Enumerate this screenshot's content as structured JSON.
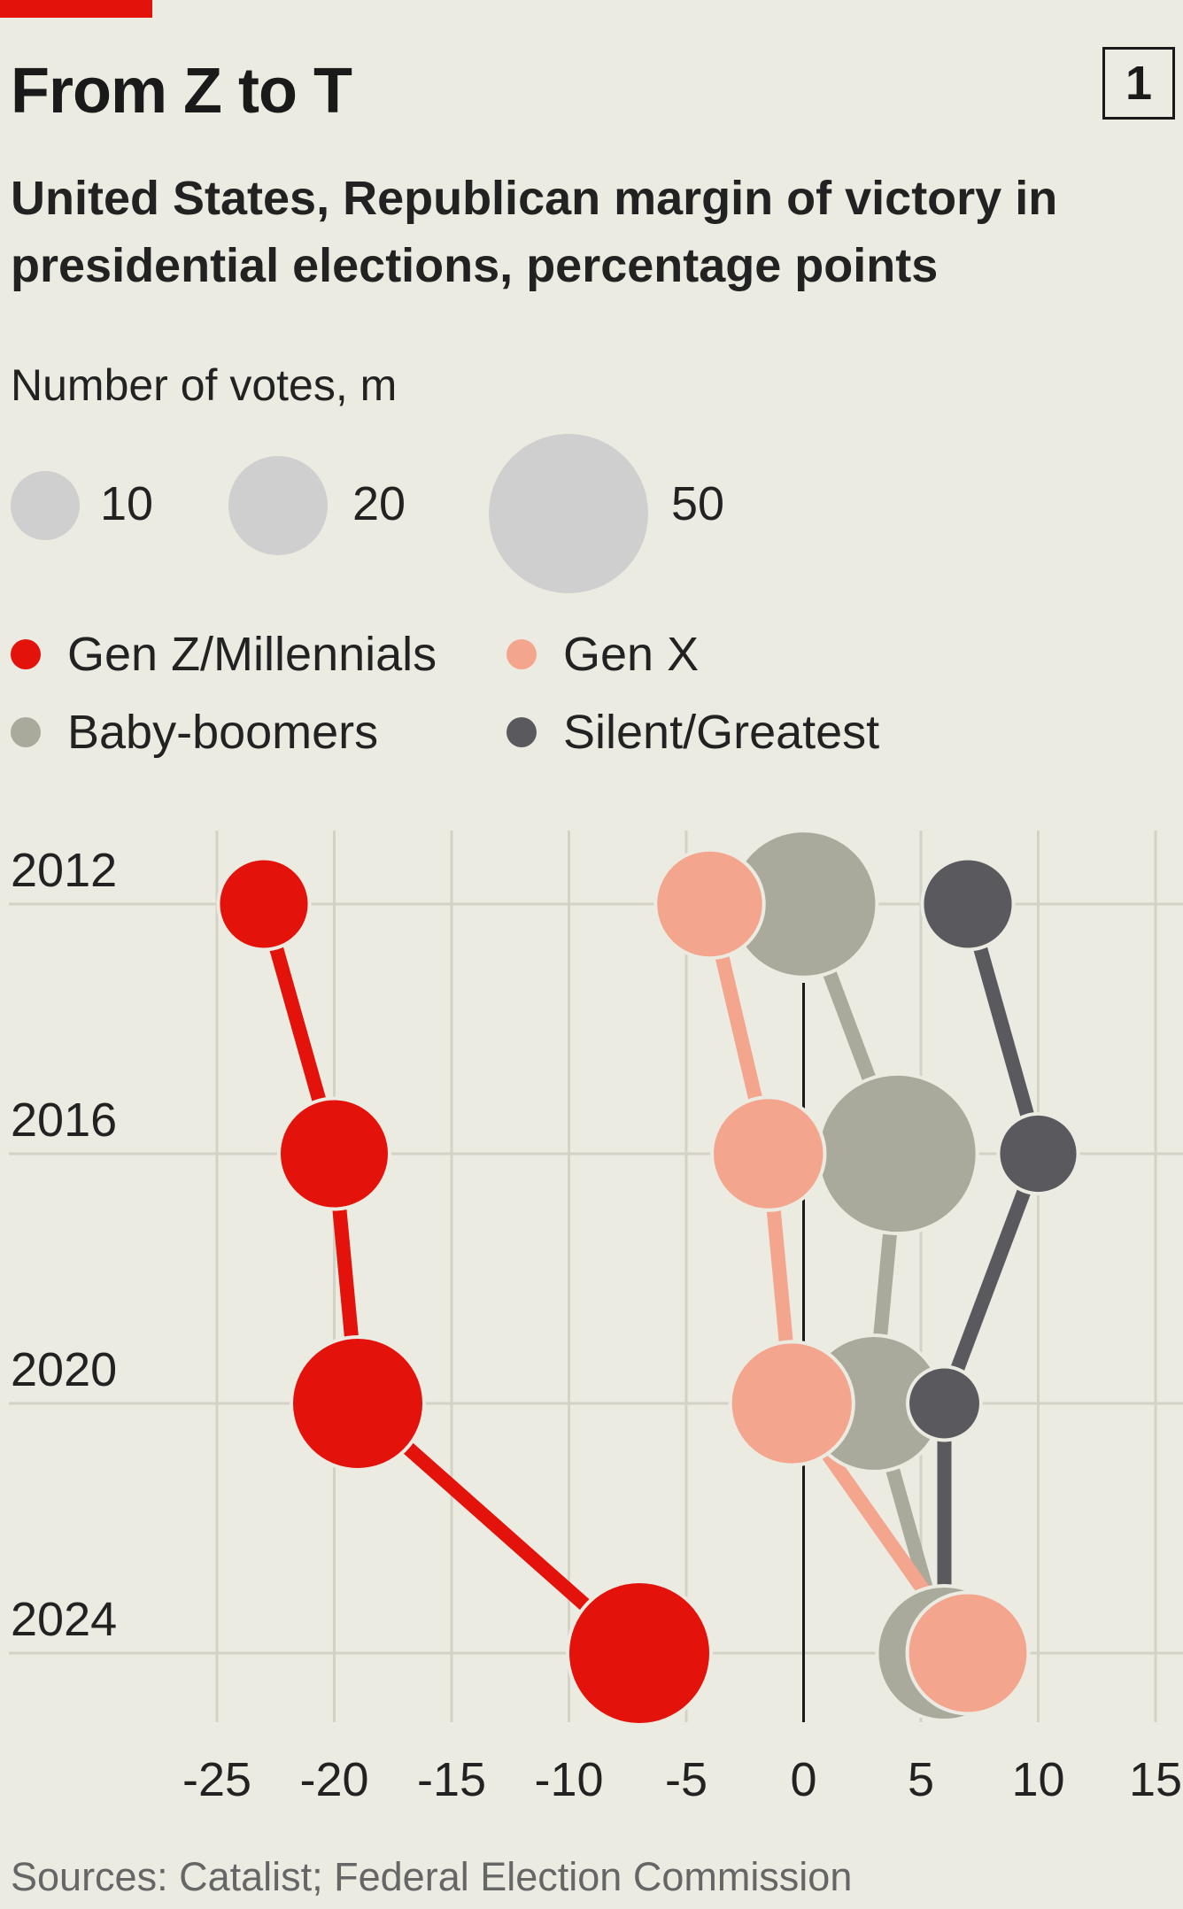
{
  "header": {
    "title": "From Z to T",
    "chart_number": "1",
    "subtitle": "United States, Republican margin of victory in presidential elections, percentage points"
  },
  "size_legend": {
    "title": "Number of votes, m",
    "items": [
      {
        "value": 10,
        "label": "10"
      },
      {
        "value": 20,
        "label": "20"
      },
      {
        "value": 50,
        "label": "50"
      }
    ],
    "color": "#cfcfcf"
  },
  "legend": [
    {
      "label": "Gen Z/Millennials",
      "color": "#e3120b"
    },
    {
      "label": "Gen X",
      "color": "#f4a58e"
    },
    {
      "label": "Baby-boomers",
      "color": "#a9a99c"
    },
    {
      "label": "Silent/Greatest",
      "color": "#5a5a5e"
    }
  ],
  "chart_data": {
    "type": "scatter",
    "title": "From Z to T",
    "subtitle": "United States, Republican margin of victory in presidential elections, percentage points",
    "y_categories": [
      "2012",
      "2016",
      "2020",
      "2024"
    ],
    "xlim": [
      -25,
      15
    ],
    "x_ticks": [
      -25,
      -20,
      -15,
      -10,
      -5,
      0,
      5,
      10,
      15
    ],
    "x_tick_labels": [
      "-25",
      "-20",
      "-15",
      "-10",
      "-5",
      "0",
      "5",
      "10",
      "15"
    ],
    "size_unit": "Number of votes, m",
    "grid": true,
    "zero_line": true,
    "series": [
      {
        "name": "Baby-boomers",
        "color": "#a9a99c",
        "x": [
          0,
          4,
          3,
          6
        ],
        "size": [
          44,
          52,
          38,
          37
        ]
      },
      {
        "name": "Silent/Greatest",
        "color": "#5a5a5e",
        "x": [
          7,
          10,
          6,
          6
        ],
        "size": [
          17,
          13,
          11,
          8
        ]
      },
      {
        "name": "Gen X",
        "color": "#f4a58e",
        "x": [
          -4,
          -1.5,
          -0.5,
          7
        ],
        "size": [
          24,
          26,
          31,
          30
        ]
      },
      {
        "name": "Gen Z/Millennials",
        "color": "#e3120b",
        "x": [
          -23,
          -20,
          -19,
          -7
        ],
        "size": [
          17,
          25,
          36,
          42
        ]
      }
    ]
  },
  "footer": {
    "source": "Sources: Catalist; Federal Election Commission"
  }
}
